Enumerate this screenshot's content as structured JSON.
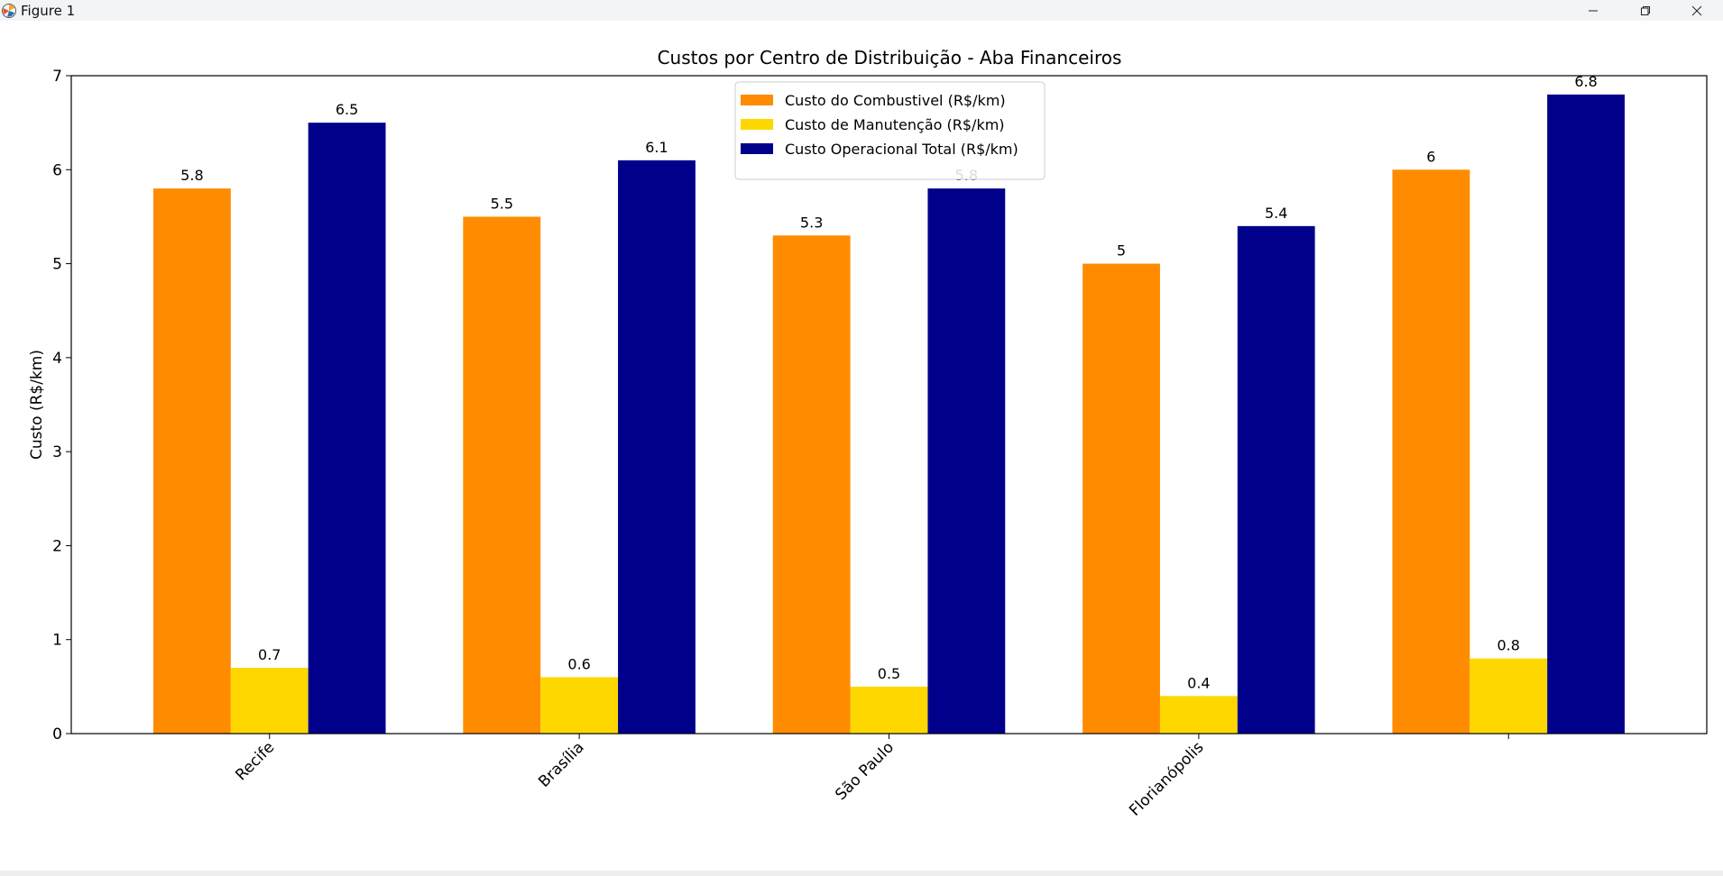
{
  "window": {
    "title": "Figure 1",
    "icons": {
      "app": "matplotlib-icon",
      "minimize": "minimize-icon",
      "maximize": "maximize-icon",
      "close": "close-icon"
    }
  },
  "chart_data": {
    "type": "bar",
    "title": "Custos por Centro de Distribuição - Aba Financeiros",
    "xlabel": "",
    "ylabel": "Custo (R$/km)",
    "categories": [
      "Recife",
      "Brasília",
      "São Paulo",
      "Florianópolis",
      ""
    ],
    "series": [
      {
        "name": "Custo do Combustivel (R$/km)",
        "color": "#ff8c00",
        "values": [
          5.8,
          5.5,
          5.3,
          5,
          6
        ],
        "labels": [
          "5.8",
          "5.5",
          "5.3",
          "5",
          "6"
        ]
      },
      {
        "name": "Custo de Manutenção (R$/km)",
        "color": "#ffd700",
        "values": [
          0.7,
          0.6,
          0.5,
          0.4,
          0.8
        ],
        "labels": [
          "0.7",
          "0.6",
          "0.5",
          "0.4",
          "0.8"
        ]
      },
      {
        "name": "Custo Operacional Total (R$/km)",
        "color": "#00008b",
        "values": [
          6.5,
          6.1,
          5.8,
          5.4,
          6.8
        ],
        "labels": [
          "6.5",
          "6.1",
          "5.8",
          "5.4",
          "6.8"
        ]
      }
    ],
    "yticks": [
      0,
      1,
      2,
      3,
      4,
      5,
      6,
      7
    ],
    "ylim": [
      0,
      7.0
    ],
    "grid": false,
    "legend": "upper center",
    "xtick_rotation": 45
  }
}
